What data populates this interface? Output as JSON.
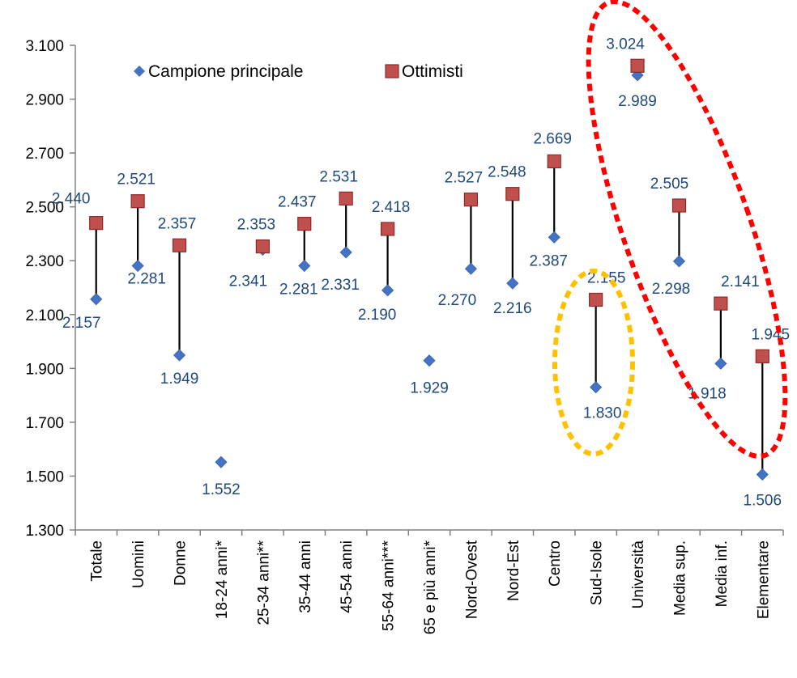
{
  "chart_data": {
    "type": "scatter",
    "title": "",
    "xlabel": "",
    "ylabel": "",
    "ylim": [
      1300,
      3100
    ],
    "yticks": [
      1300,
      1500,
      1700,
      1900,
      2100,
      2300,
      2500,
      2700,
      2900,
      3100
    ],
    "ytick_labels": [
      "1.300",
      "1.500",
      "1.700",
      "1.900",
      "2.100",
      "2.300",
      "2.500",
      "2.700",
      "2.900",
      "3.100"
    ],
    "grid": false,
    "legend_position": "top-left",
    "categories": [
      "Totale",
      "Uomini",
      "Donne",
      "18-24 anni*",
      "25-34 anni**",
      "35-44 anni",
      "45-54 anni",
      "55-64 anni***",
      "65 e più anni*",
      "Nord-Ovest",
      "Nord-Est",
      "Centro",
      "Sud-Isole",
      "Università",
      "Media sup.",
      "Media inf.",
      "Elementare"
    ],
    "series": [
      {
        "name": "Campione principale",
        "marker": "diamond",
        "color": "#4472C4",
        "values": [
          2157,
          2281,
          1949,
          1552,
          2341,
          2281,
          2331,
          2190,
          1929,
          2270,
          2216,
          2387,
          1830,
          2989,
          2298,
          1918,
          1506
        ],
        "labels": [
          "2.157",
          "2.281",
          "1.949",
          "1.552",
          "2.341",
          "2.281",
          "2.331",
          "2.190",
          "1.929",
          "2.270",
          "2.216",
          "2.387",
          "1.830",
          "2.989",
          "2.298",
          "1.918",
          "1.506"
        ]
      },
      {
        "name": "Ottimisti",
        "marker": "square",
        "color": "#C0504D",
        "values": [
          2440,
          2521,
          2357,
          null,
          2353,
          2437,
          2531,
          2418,
          null,
          2527,
          2548,
          2669,
          2155,
          3024,
          2505,
          2141,
          1945
        ],
        "labels": [
          "2.440",
          "2.521",
          "2.357",
          null,
          "2.353",
          "2.437",
          "2.531",
          "2.418",
          null,
          "2.527",
          "2.548",
          "2.669",
          "2.155",
          "3.024",
          "2.505",
          "2.141",
          "1.945"
        ]
      }
    ],
    "label_color": "#1F497D",
    "highlight_colors": {
      "red_ellipse": "#FF0000",
      "yellow_ellipse": "#FFC000"
    }
  }
}
